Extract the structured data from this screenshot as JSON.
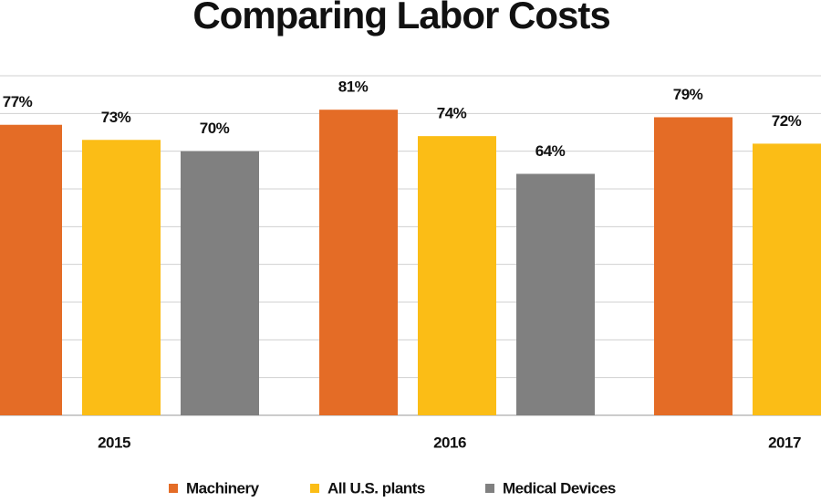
{
  "chart_data": {
    "type": "bar",
    "title": "Comparing Labor Costs",
    "categories": [
      "2015",
      "2016",
      "2017"
    ],
    "series": [
      {
        "name": "Machinery",
        "color": "#e46c26",
        "values": [
          77,
          81,
          79
        ],
        "value_labels": [
          "77%",
          "81%",
          "79%"
        ]
      },
      {
        "name": "All U.S. plants",
        "color": "#fbbd16",
        "values": [
          73,
          74,
          72
        ],
        "value_labels": [
          "73%",
          "74%",
          "72%"
        ]
      },
      {
        "name": "Medical Devices",
        "color": "#808080",
        "values": [
          70,
          64,
          null
        ],
        "value_labels": [
          "70%",
          "64%",
          null
        ]
      }
    ],
    "ylim": [
      0,
      90
    ],
    "yticks": [
      0,
      10,
      20,
      30,
      40,
      50,
      60,
      70,
      80,
      90
    ],
    "grid": true
  }
}
